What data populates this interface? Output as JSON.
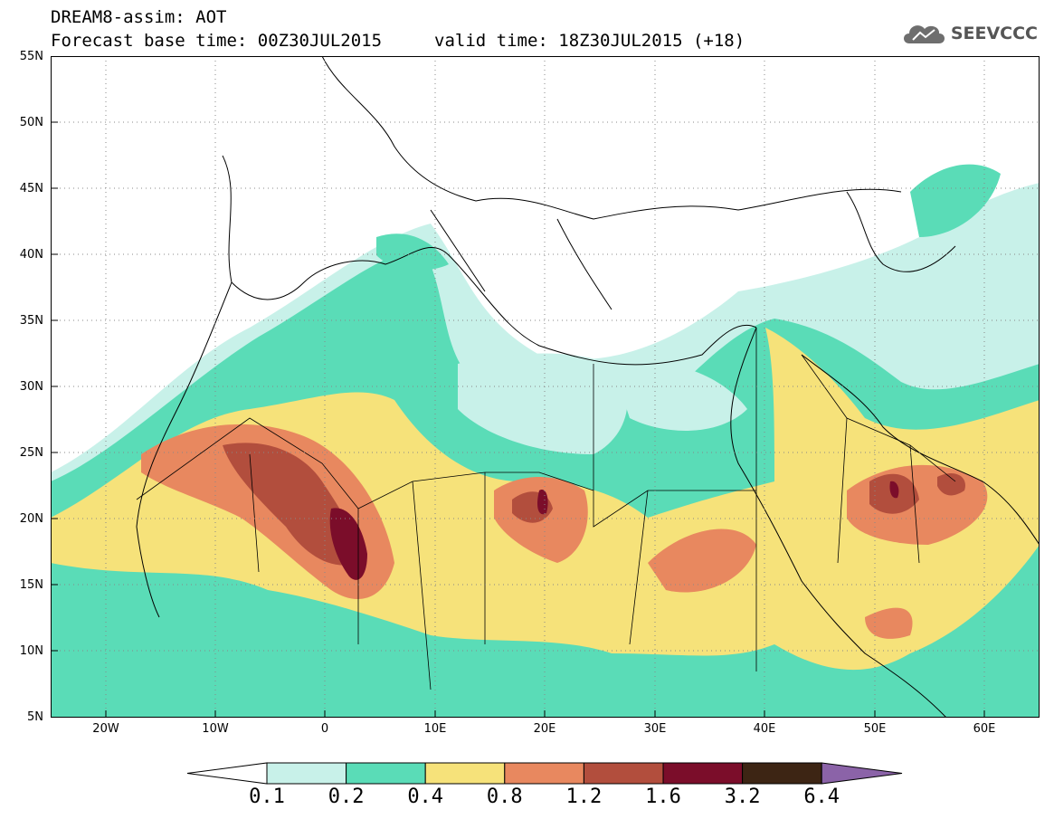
{
  "header": {
    "title_line1": "DREAM8-assim: AOT",
    "title_line2": "Forecast base time: 00Z30JUL2015",
    "valid_time": "valid time: 18Z30JUL2015 (+18)",
    "logo_text": "SEEVCCC",
    "logo_icon": "cloud-icon"
  },
  "map": {
    "lat_labels": [
      "55N",
      "50N",
      "45N",
      "40N",
      "35N",
      "30N",
      "25N",
      "20N",
      "15N",
      "10N",
      "5N"
    ],
    "lon_labels": [
      "20W",
      "10W",
      "0",
      "10E",
      "20E",
      "30E",
      "40E",
      "50E",
      "60E"
    ],
    "lat_range": [
      5,
      55
    ],
    "lon_range": [
      -25,
      65
    ],
    "grid": "dotted"
  },
  "colorbar": {
    "labels": [
      "0.1",
      "0.2",
      "0.4",
      "0.8",
      "1.2",
      "1.6",
      "3.2",
      "6.4"
    ],
    "colors": [
      "#ffffff",
      "#c8f1e9",
      "#5adcb7",
      "#f6e27a",
      "#e8885f",
      "#b24e3d",
      "#7b0d2a",
      "#3d2514",
      "#8b63a8"
    ]
  }
}
